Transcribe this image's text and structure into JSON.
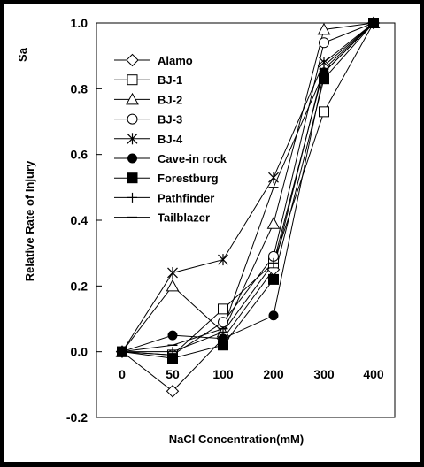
{
  "chart_data": {
    "type": "line",
    "ylabel_corner": "Sa",
    "xlabel": "NaCl Concentration(mM)",
    "ylabel": "Relative Rate of Injury",
    "x": [
      0,
      50,
      100,
      200,
      300,
      400
    ],
    "xlim": [
      -25,
      425
    ],
    "ylim": [
      -0.2,
      1.0
    ],
    "xticks": [
      "0",
      "50",
      "100",
      "200",
      "300",
      "400"
    ],
    "yticks": [
      "-0.2",
      "0.0",
      "0.2",
      "0.4",
      "0.6",
      "0.8",
      "1.0"
    ],
    "ytick_values": [
      -0.2,
      0.0,
      0.2,
      0.4,
      0.6,
      0.8,
      1.0
    ],
    "grid": false,
    "legend_position": "top-left",
    "series": [
      {
        "name": "Alamo",
        "marker": "diamond-open",
        "values": [
          0.0,
          -0.12,
          0.04,
          0.25,
          0.87,
          1.0
        ]
      },
      {
        "name": "BJ-1",
        "marker": "square-open",
        "values": [
          0.0,
          -0.01,
          0.13,
          0.27,
          0.73,
          1.0
        ]
      },
      {
        "name": "BJ-2",
        "marker": "triangle-open",
        "values": [
          0.0,
          0.2,
          0.06,
          0.39,
          0.98,
          1.0
        ]
      },
      {
        "name": "BJ-3",
        "marker": "circle-open",
        "values": [
          0.0,
          -0.01,
          0.09,
          0.29,
          0.94,
          1.0
        ]
      },
      {
        "name": "BJ-4",
        "marker": "star",
        "values": [
          0.0,
          0.24,
          0.28,
          0.53,
          0.88,
          1.0
        ]
      },
      {
        "name": "Cave-in rock",
        "marker": "circle-filled",
        "values": [
          0.0,
          0.05,
          0.04,
          0.11,
          0.85,
          1.0
        ]
      },
      {
        "name": "Forestburg",
        "marker": "square-filled",
        "values": [
          0.0,
          -0.02,
          0.02,
          0.22,
          0.83,
          1.0
        ]
      },
      {
        "name": "Pathfinder",
        "marker": "plus",
        "values": [
          0.0,
          0.0,
          0.06,
          0.27,
          0.86,
          1.0
        ]
      },
      {
        "name": "Tailblazer",
        "marker": "dash",
        "values": [
          0.0,
          0.02,
          0.07,
          0.5,
          0.85,
          1.0
        ]
      }
    ]
  }
}
